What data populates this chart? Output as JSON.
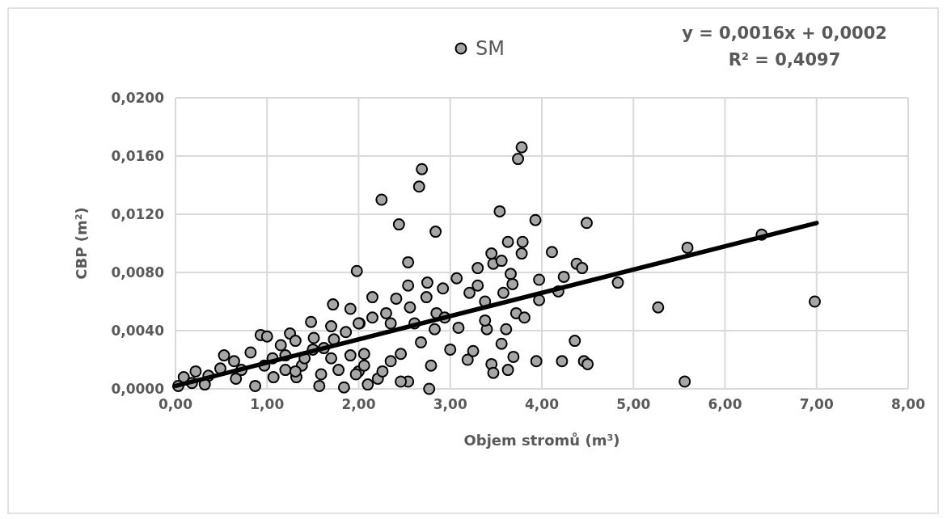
{
  "chart_data": {
    "type": "scatter",
    "xlabel": "Objem stromů (m³)",
    "ylabel": "CBP (m²)",
    "annotations": [
      "y = 0,0016x + 0,0002",
      "R² = 0,4097"
    ],
    "xlim": [
      0,
      8
    ],
    "ylim": [
      0,
      0.02
    ],
    "xticks": [
      {
        "value": 0,
        "label": "0,00"
      },
      {
        "value": 1,
        "label": "1,00"
      },
      {
        "value": 2,
        "label": "2,00"
      },
      {
        "value": 3,
        "label": "3,00"
      },
      {
        "value": 4,
        "label": "4,00"
      },
      {
        "value": 5,
        "label": "5,00"
      },
      {
        "value": 6,
        "label": "6,00"
      },
      {
        "value": 7,
        "label": "7,00"
      },
      {
        "value": 8,
        "label": "8,00"
      }
    ],
    "yticks": [
      {
        "value": 0,
        "label": "0,0000"
      },
      {
        "value": 0.004,
        "label": "0,0040"
      },
      {
        "value": 0.008,
        "label": "0,0080"
      },
      {
        "value": 0.012,
        "label": "0,0120"
      },
      {
        "value": 0.016,
        "label": "0,0160"
      },
      {
        "value": 0.02,
        "label": "0,0200"
      }
    ],
    "grid": true,
    "legend": "top",
    "series": [
      {
        "name": "SM",
        "marker": "circle",
        "color": "#a6a6a6",
        "x": [
          3.78,
          3.74,
          2.69,
          2.66,
          2.25,
          3.54,
          3.93,
          2.44,
          2.84,
          2.54,
          4.11,
          3.63,
          3.79,
          3.78,
          3.45,
          3.47,
          3.56,
          3.3,
          3.66,
          3.68,
          3.97,
          4.24,
          3.97,
          1.98,
          3.07,
          3.3,
          3.58,
          2.75,
          2.54,
          2.15,
          2.41,
          2.92,
          3.72,
          3.81,
          3.4,
          3.61,
          3.56,
          3.69,
          3.94,
          4.22,
          3.0,
          3.19,
          3.25,
          3.45,
          3.47,
          3.63,
          2.77,
          2.79,
          2.54,
          2.46,
          2.1,
          2.21,
          2.68,
          2.35,
          2.46,
          2.26,
          2.0,
          2.06,
          2.83,
          3.09,
          2.61,
          2.35,
          2.15,
          2.01,
          2.85,
          3.21,
          3.38,
          2.56,
          2.74,
          2.3,
          2.94,
          3.38,
          4.49,
          5.59,
          6.4,
          4.38,
          4.44,
          4.83,
          5.27,
          4.36,
          4.46,
          4.5,
          5.56,
          4.18,
          6.98,
          1.72,
          1.91,
          1.48,
          1.7,
          2.0,
          0.93,
          1.0,
          1.25,
          1.31,
          1.51,
          0.53,
          0.82,
          0.22,
          0.09,
          0.03,
          0.49,
          0.66,
          0.87,
          1.07,
          1.2,
          1.32,
          1.38,
          1.59,
          1.57,
          1.7,
          1.78,
          1.84,
          1.15,
          1.06,
          1.31,
          0.97,
          0.72,
          0.36,
          0.32,
          1.5,
          1.62,
          1.73,
          1.86,
          1.91,
          1.97,
          2.06,
          1.41,
          1.2,
          0.64,
          0.18
        ],
        "values": [
          0.0166,
          0.0158,
          0.0151,
          0.0139,
          0.013,
          0.0122,
          0.0116,
          0.0113,
          0.0108,
          0.0087,
          0.0094,
          0.0101,
          0.0101,
          0.0093,
          0.0093,
          0.0086,
          0.0088,
          0.0083,
          0.0079,
          0.0072,
          0.0075,
          0.0077,
          0.0061,
          0.0081,
          0.0076,
          0.0071,
          0.0066,
          0.0073,
          0.0071,
          0.0063,
          0.0062,
          0.0069,
          0.0052,
          0.0049,
          0.0041,
          0.0041,
          0.0031,
          0.0022,
          0.0019,
          0.0019,
          0.0027,
          0.002,
          0.0026,
          0.0017,
          0.0011,
          0.0013,
          0.0,
          0.0016,
          0.0005,
          0.0005,
          0.0003,
          0.0007,
          0.0032,
          0.0019,
          0.0024,
          0.0012,
          0.0012,
          0.0024,
          0.0041,
          0.0042,
          0.0045,
          0.0045,
          0.0049,
          0.0045,
          0.0052,
          0.0066,
          0.006,
          0.0056,
          0.0063,
          0.0052,
          0.0049,
          0.0047,
          0.0114,
          0.0097,
          0.0106,
          0.0086,
          0.0083,
          0.0073,
          0.0056,
          0.0033,
          0.0019,
          0.0017,
          0.0005,
          0.0067,
          0.006,
          0.0058,
          0.0055,
          0.0046,
          0.0043,
          0.0045,
          0.0037,
          0.0036,
          0.0038,
          0.0033,
          0.0035,
          0.0023,
          0.0025,
          0.0012,
          0.0008,
          0.0002,
          0.0014,
          0.0007,
          0.0002,
          0.0008,
          0.0013,
          0.0008,
          0.0016,
          0.001,
          0.0002,
          0.0021,
          0.0013,
          0.0001,
          0.003,
          0.0021,
          0.0012,
          0.0016,
          0.0013,
          0.0009,
          0.0003,
          0.0027,
          0.0028,
          0.0034,
          0.0039,
          0.0023,
          0.001,
          0.0016,
          0.0021,
          0.0023,
          0.0019,
          0.0004
        ]
      },
      {
        "type": "line",
        "color": "#000000",
        "x": [
          0,
          7
        ],
        "values": [
          0.0002,
          0.0114
        ]
      }
    ]
  }
}
